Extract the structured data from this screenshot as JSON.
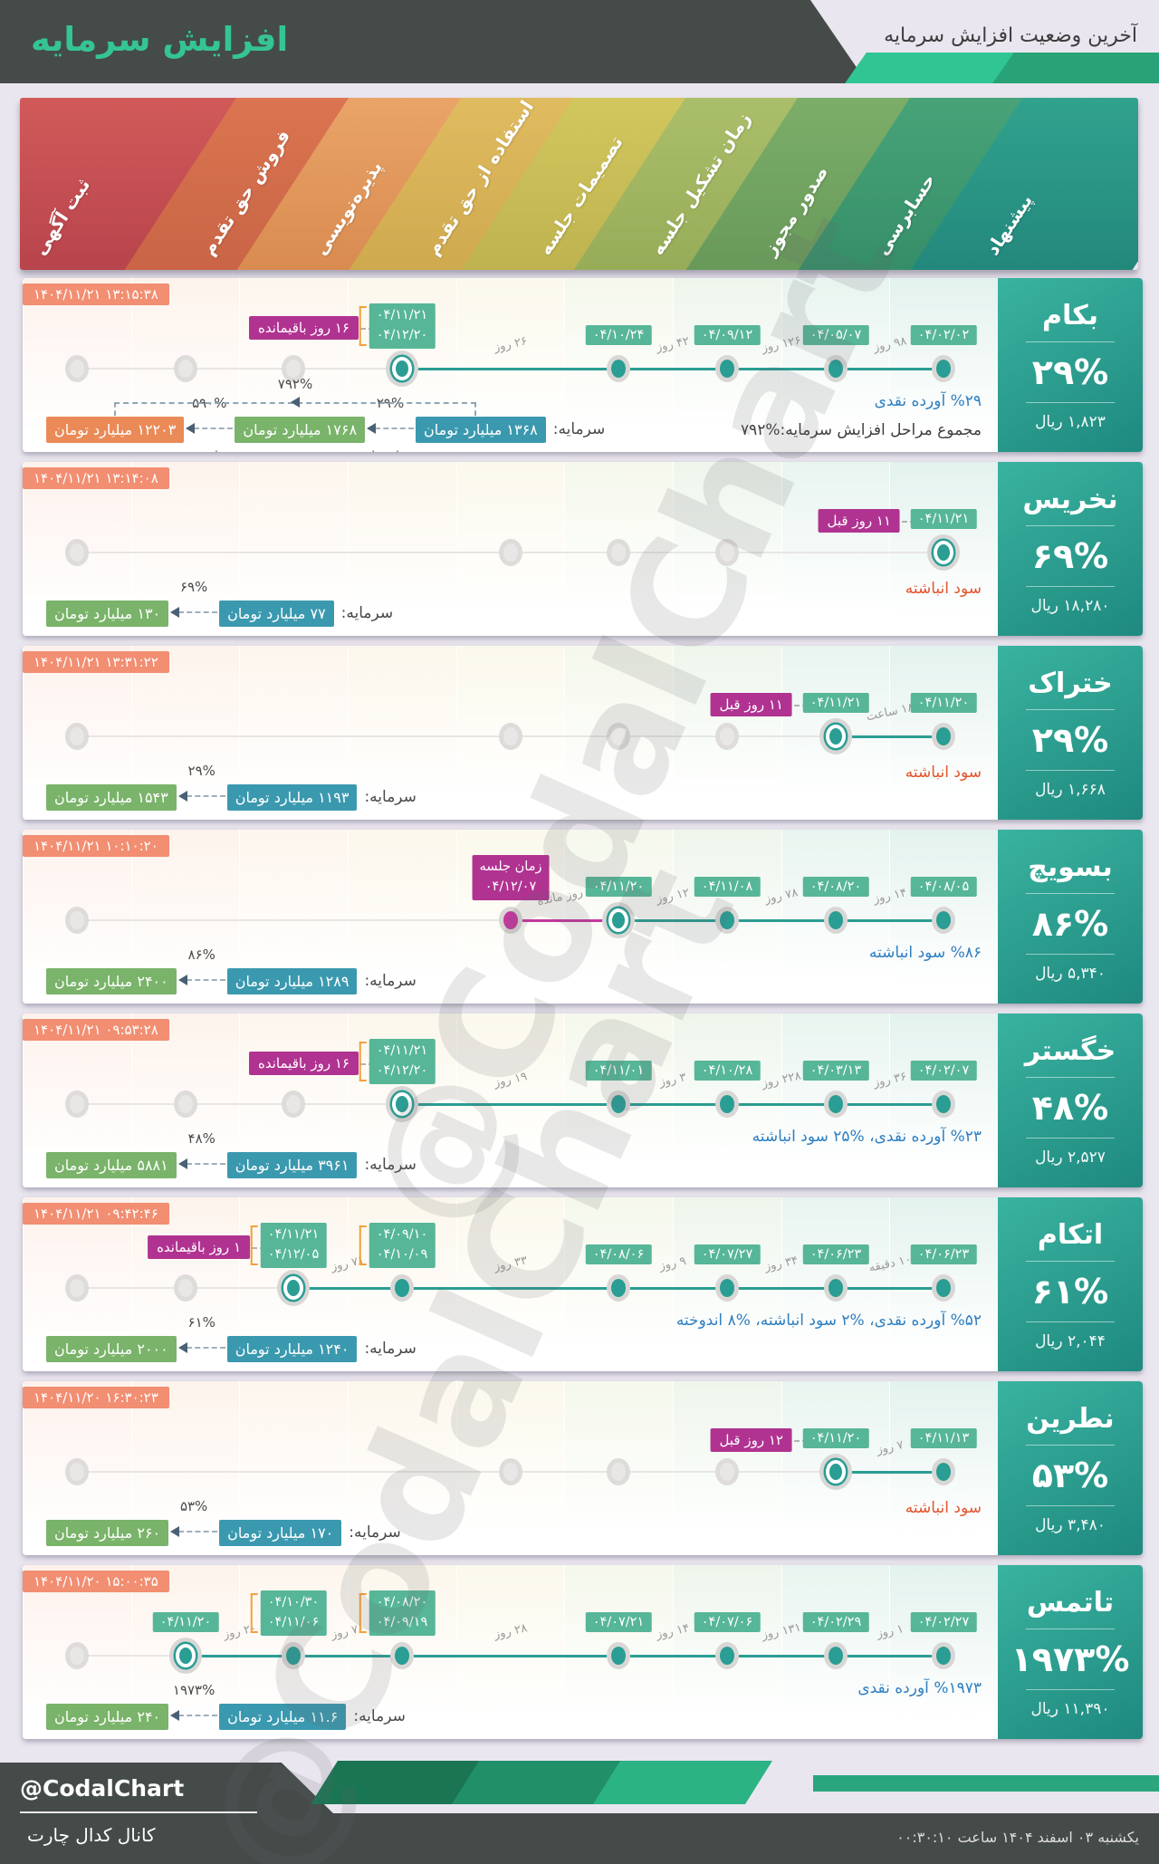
{
  "header": {
    "title": "افزایش سرمایه",
    "subtitle": "آخرین وضعیت افزایش سرمایه"
  },
  "watermark": {
    "text": "@CodalChart"
  },
  "palette": {
    "header_bg": "#454b49",
    "title_accent": "#35c493",
    "page_bg": "#eae6ef",
    "chip_date": "#57b698",
    "chip_timestamp": "#f28e72",
    "chip_magenta": "#b03391",
    "chip_capital_blue": "#3b99af",
    "chip_capital_green": "#7ab36a",
    "chip_capital_orange": "#ea8a57",
    "dot_teal": "#2a9d94",
    "dot_future_magenta": "#c4389f",
    "note_blue": "#2f7fc1",
    "note_orange": "#e2552e",
    "panel_gradient": [
      "#3ab3a0",
      "#1e897f"
    ],
    "footer_greens": [
      "#1a7553",
      "#219069",
      "#2cb384",
      "#2aa57e"
    ]
  },
  "stages": [
    {
      "label": "ثبت آگهی",
      "c1": "#d15a59",
      "c2": "#b8444c"
    },
    {
      "label": "فروش حق تقدم",
      "c1": "#db7550",
      "c2": "#c96546"
    },
    {
      "label": "پذیره‌نویسی",
      "c1": "#eaa468",
      "c2": "#d98b50"
    },
    {
      "label": "استفاده از حق تقدم",
      "c1": "#e0bb60",
      "c2": "#cfa94e"
    },
    {
      "label": "تصمیمات جلسه",
      "c1": "#d2c65e",
      "c2": "#bfb350"
    },
    {
      "label": "زمان تشکیل جلسه",
      "c1": "#abbf6b",
      "c2": "#97ac58"
    },
    {
      "label": "صدور مجوز",
      "c1": "#7cae69",
      "c2": "#68995a"
    },
    {
      "label": "حسابرسی",
      "c1": "#48a379",
      "c2": "#358e68"
    },
    {
      "label": "پیشنهاد",
      "c1": "#31a28e",
      "c2": "#23887c"
    }
  ],
  "column_tints": [
    "#fdf1ec",
    "#fdf3ec",
    "#fdf6ee",
    "#fcf7ec",
    "#fbf9ec",
    "#f5f8ec",
    "#eef6ec",
    "#e8f4ef",
    "#e3f2ee"
  ],
  "rows": [
    {
      "name": "بکام",
      "pct": "۲۹%",
      "price": "۱,۸۲۳ ریال",
      "ts": "۱۴۰۴/۱۱/۲۱ ۱۳:۱۵:۳۸",
      "grays": [
        1,
        2,
        3
      ],
      "active": {
        "col": 4,
        "dates": [
          "۰۴/۱۱/۲۱",
          "۰۴/۱۲/۲۰"
        ],
        "badge": "۱۶ روز باقیمانده"
      },
      "dots": [
        {
          "col": 6,
          "dates": [
            "۰۴/۱۰/۲۴"
          ]
        },
        {
          "col": 7,
          "dates": [
            "۰۴/۰۹/۱۲"
          ]
        },
        {
          "col": 8,
          "dates": [
            "۰۴/۰۵/۰۷"
          ]
        },
        {
          "col": 9,
          "dates": [
            "۰۴/۰۲/۰۲"
          ]
        }
      ],
      "segs": [
        {
          "f": 4,
          "t": 6,
          "l": "۲۶ روز"
        },
        {
          "f": 6,
          "t": 7,
          "l": "۴۲ روز"
        },
        {
          "f": 7,
          "t": 8,
          "l": "۱۲۶ روز"
        },
        {
          "f": 8,
          "t": 9,
          "l": "۹۸ روز"
        }
      ],
      "notes": {
        "blue": "%۲۹ آورده نقدی",
        "dark": "مجموع مراحل افزایش سرمایه:%۷۹۲"
      },
      "cap": {
        "label": "سرمایه:",
        "chips": [
          {
            "v": "۱۲۲۰۳ میلیارد تومان",
            "c": "orange"
          },
          {
            "v": "۱۷۶۸ میلیارد تومان",
            "c": "green"
          },
          {
            "v": "۱۳۶۸ میلیارد تومان",
            "c": "blue"
          }
        ],
        "arrows": [
          {
            "pct": "۵۹۰%",
            "stage": "مرحله بعدی"
          },
          {
            "pct": "۲۹%",
            "stage": "مرحله فعلی"
          }
        ],
        "total": "۷۹۲%"
      }
    },
    {
      "name": "نخریس",
      "pct": "۶۹%",
      "price": "۱۸,۲۸۰ ریال",
      "ts": "۱۴۰۴/۱۱/۲۱ ۱۳:۱۴:۰۸",
      "grays": [
        1,
        5,
        6,
        7
      ],
      "active": {
        "col": 9,
        "dates": [
          "۰۴/۱۱/۲۱"
        ],
        "badge": "۱۱ روز قبل"
      },
      "dots": [],
      "segs": [],
      "notes": {
        "orange": "سود انباشته"
      },
      "cap": {
        "label": "سرمایه:",
        "chips": [
          {
            "v": "۱۳۰ میلیارد تومان",
            "c": "green"
          },
          {
            "v": "۷۷ میلیارد تومان",
            "c": "blue"
          }
        ],
        "arrows": [
          {
            "pct": "۶۹%"
          }
        ]
      }
    },
    {
      "name": "ختراک",
      "pct": "۲۹%",
      "price": "۱,۶۶۸ ریال",
      "ts": "۱۴۰۴/۱۱/۲۱ ۱۳:۳۱:۲۲",
      "grays": [
        1,
        5,
        6,
        7
      ],
      "active": {
        "col": 8,
        "dates": [
          "۰۴/۱۱/۲۱"
        ],
        "badge": "۱۱ روز قبل"
      },
      "dots": [
        {
          "col": 9,
          "dates": [
            "۰۴/۱۱/۲۰"
          ]
        }
      ],
      "segs": [
        {
          "f": 8,
          "t": 9,
          "l": "۱۸ ساعت"
        }
      ],
      "notes": {
        "orange": "سود انباشته"
      },
      "cap": {
        "label": "سرمایه:",
        "chips": [
          {
            "v": "۱۵۴۳ میلیارد تومان",
            "c": "green"
          },
          {
            "v": "۱۱۹۳ میلیارد تومان",
            "c": "blue"
          }
        ],
        "arrows": [
          {
            "pct": "۲۹%"
          }
        ]
      }
    },
    {
      "name": "بسویچ",
      "pct": "۸۶%",
      "price": "۵,۳۴۰ ریال",
      "ts": "۱۴۰۴/۱۱/۲۱ ۱۰:۱۰:۲۰",
      "grays": [
        1
      ],
      "active": {
        "col": 6,
        "dates": [
          "۰۴/۱۱/۲۰"
        ]
      },
      "future": {
        "col": 5,
        "lines": [
          "زمان جلسه",
          "۰۴/۱۲/۰۷"
        ]
      },
      "dots": [
        {
          "col": 7,
          "dates": [
            "۰۴/۱۱/۰۸"
          ]
        },
        {
          "col": 8,
          "dates": [
            "۰۴/۰۸/۲۰"
          ]
        },
        {
          "col": 9,
          "dates": [
            "۰۴/۰۸/۰۵"
          ]
        }
      ],
      "segs": [
        {
          "f": 5,
          "t": 6,
          "l": "۴ روز مانده",
          "m": true,
          "arrow": true
        },
        {
          "f": 6,
          "t": 7,
          "l": "۱۲ روز"
        },
        {
          "f": 7,
          "t": 8,
          "l": "۷۸ روز"
        },
        {
          "f": 8,
          "t": 9,
          "l": "۱۴ روز"
        }
      ],
      "notes": {
        "blue": "%۸۶ سود انباشته"
      },
      "cap": {
        "label": "سرمایه:",
        "chips": [
          {
            "v": "۲۴۰۰ میلیارد تومان",
            "c": "green"
          },
          {
            "v": "۱۲۸۹ میلیارد تومان",
            "c": "blue"
          }
        ],
        "arrows": [
          {
            "pct": "۸۶%"
          }
        ]
      }
    },
    {
      "name": "خگستر",
      "pct": "۴۸%",
      "price": "۲,۵۲۷ ریال",
      "ts": "۱۴۰۴/۱۱/۲۱ ۰۹:۵۳:۲۸",
      "grays": [
        1,
        2,
        3
      ],
      "active": {
        "col": 4,
        "dates": [
          "۰۴/۱۱/۲۱",
          "۰۴/۱۲/۲۰"
        ],
        "badge": "۱۶ روز باقیمانده"
      },
      "dots": [
        {
          "col": 6,
          "dates": [
            "۰۴/۱۱/۰۱"
          ]
        },
        {
          "col": 7,
          "dates": [
            "۰۴/۱۰/۲۸"
          ]
        },
        {
          "col": 8,
          "dates": [
            "۰۴/۰۳/۱۳"
          ]
        },
        {
          "col": 9,
          "dates": [
            "۰۴/۰۲/۰۷"
          ]
        }
      ],
      "segs": [
        {
          "f": 4,
          "t": 6,
          "l": "۱۹ روز"
        },
        {
          "f": 6,
          "t": 7,
          "l": "۳ روز"
        },
        {
          "f": 7,
          "t": 8,
          "l": "۲۲۸ روز"
        },
        {
          "f": 8,
          "t": 9,
          "l": "۳۶ روز"
        }
      ],
      "notes": {
        "blue": "%۲۳ آورده نقدی، %۲۵ سود انباشته"
      },
      "cap": {
        "label": "سرمایه:",
        "chips": [
          {
            "v": "۵۸۸۱ میلیارد تومان",
            "c": "green"
          },
          {
            "v": "۳۹۶۱ میلیارد تومان",
            "c": "blue"
          }
        ],
        "arrows": [
          {
            "pct": "۴۸%"
          }
        ]
      }
    },
    {
      "name": "اتکام",
      "pct": "۶۱%",
      "price": "۲,۰۴۴ ریال",
      "ts": "۱۴۰۴/۱۱/۲۱ ۰۹:۴۲:۴۶",
      "grays": [
        1,
        2
      ],
      "active": {
        "col": 3,
        "dates": [
          "۰۴/۱۱/۲۱",
          "۰۴/۱۲/۰۵"
        ],
        "badge": "۱ روز باقیمانده"
      },
      "dots": [
        {
          "col": 4,
          "dates": [
            "۰۴/۰۹/۱۰",
            "۰۴/۱۰/۰۹"
          ]
        },
        {
          "col": 6,
          "dates": [
            "۰۴/۰۸/۰۶"
          ]
        },
        {
          "col": 7,
          "dates": [
            "۰۴/۰۷/۲۷"
          ]
        },
        {
          "col": 8,
          "dates": [
            "۰۴/۰۶/۲۳"
          ]
        },
        {
          "col": 9,
          "dates": [
            "۰۴/۰۶/۲۳"
          ]
        }
      ],
      "segs": [
        {
          "f": 3,
          "t": 4,
          "l": "۷۱ روز"
        },
        {
          "f": 4,
          "t": 6,
          "l": "۳۳ روز"
        },
        {
          "f": 6,
          "t": 7,
          "l": "۹ روز"
        },
        {
          "f": 7,
          "t": 8,
          "l": "۳۴ روز"
        },
        {
          "f": 8,
          "t": 9,
          "l": "۱۰ دقیقه"
        }
      ],
      "notes": {
        "blue": "%۵۲ آورده نقدی، %۲ سود انباشته، %۸ اندوخته"
      },
      "cap": {
        "label": "سرمایه:",
        "chips": [
          {
            "v": "۲۰۰۰ میلیارد تومان",
            "c": "green"
          },
          {
            "v": "۱۲۴۰ میلیارد تومان",
            "c": "blue"
          }
        ],
        "arrows": [
          {
            "pct": "۶۱%"
          }
        ]
      }
    },
    {
      "name": "نطرین",
      "pct": "۵۳%",
      "price": "۳,۴۸۰ ریال",
      "ts": "۱۴۰۴/۱۱/۲۰ ۱۶:۳۰:۲۳",
      "grays": [
        1,
        5,
        6,
        7
      ],
      "active": {
        "col": 8,
        "dates": [
          "۰۴/۱۱/۲۰"
        ],
        "badge": "۱۲ روز قبل"
      },
      "dots": [
        {
          "col": 9,
          "dates": [
            "۰۴/۱۱/۱۳"
          ]
        }
      ],
      "segs": [
        {
          "f": 8,
          "t": 9,
          "l": "۷ روز"
        }
      ],
      "notes": {
        "orange": "سود انباشته"
      },
      "cap": {
        "label": "سرمایه:",
        "chips": [
          {
            "v": "۲۶۰ میلیارد تومان",
            "c": "green"
          },
          {
            "v": "۱۷۰ میلیارد تومان",
            "c": "blue"
          }
        ],
        "arrows": [
          {
            "pct": "۵۳%"
          }
        ]
      }
    },
    {
      "name": "تاتمس",
      "pct": "۱۹۷۳%",
      "price": "۱۱,۳۹۰ ریال",
      "ts": "۱۴۰۴/۱۱/۲۰ ۱۵:۰۰:۳۵",
      "grays": [
        1
      ],
      "active": {
        "col": 2,
        "dates": [
          "۰۴/۱۱/۲۰"
        ]
      },
      "dots": [
        {
          "col": 3,
          "dates": [
            "۰۴/۱۰/۳۰",
            "۰۴/۱۱/۰۶"
          ]
        },
        {
          "col": 4,
          "dates": [
            "۰۴/۰۸/۲۰",
            "۰۴/۰۹/۱۹"
          ]
        },
        {
          "col": 6,
          "dates": [
            "۰۴/۰۷/۲۱"
          ]
        },
        {
          "col": 7,
          "dates": [
            "۰۴/۰۷/۰۶"
          ]
        },
        {
          "col": 8,
          "dates": [
            "۰۴/۰۲/۲۹"
          ]
        },
        {
          "col": 9,
          "dates": [
            "۰۴/۰۲/۲۷"
          ]
        }
      ],
      "segs": [
        {
          "f": 2,
          "t": 3,
          "l": "۲۰ روز"
        },
        {
          "f": 3,
          "t": 4,
          "l": "۷۰ روز"
        },
        {
          "f": 4,
          "t": 6,
          "l": "۲۸ روز"
        },
        {
          "f": 6,
          "t": 7,
          "l": "۱۴ روز"
        },
        {
          "f": 7,
          "t": 8,
          "l": "۱۳۱ روز"
        },
        {
          "f": 8,
          "t": 9,
          "l": "۱ روز"
        }
      ],
      "notes": {
        "blue": "%۱۹۷۳ آورده نقدی"
      },
      "cap": {
        "label": "سرمایه:",
        "chips": [
          {
            "v": "۲۴۰ میلیارد تومان",
            "c": "green"
          },
          {
            "v": "۱۱.۶ میلیارد تومان",
            "c": "blue"
          }
        ],
        "arrows": [
          {
            "pct": "۱۹۷۳%"
          }
        ]
      }
    }
  ],
  "footer": {
    "handle": "@CodalChart",
    "channel": "کانال کدال چارت",
    "datetime": "یکشنبه ۰۳ اسفند ۱۴۰۴ ساعت ۰۰:۳۰:۱۰"
  }
}
